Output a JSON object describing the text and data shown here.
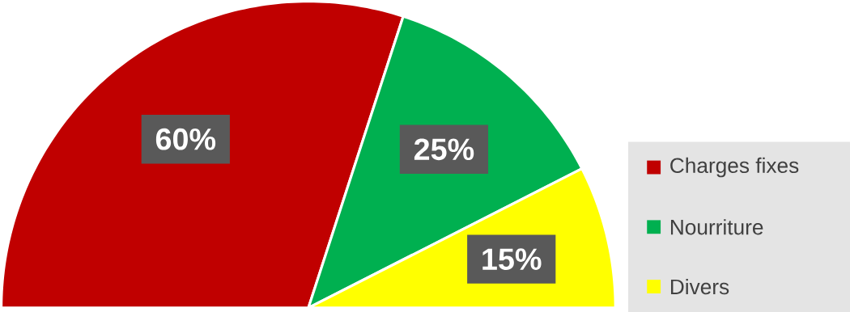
{
  "chart_data": {
    "type": "pie",
    "categories": [
      "Charges fixes",
      "Nourriture",
      "Divers"
    ],
    "values": [
      60,
      25,
      15
    ],
    "value_labels": [
      "60%",
      "25%",
      "15%"
    ],
    "colors": [
      "#c00000",
      "#00b050",
      "#ffff00"
    ],
    "legend": "right"
  }
}
